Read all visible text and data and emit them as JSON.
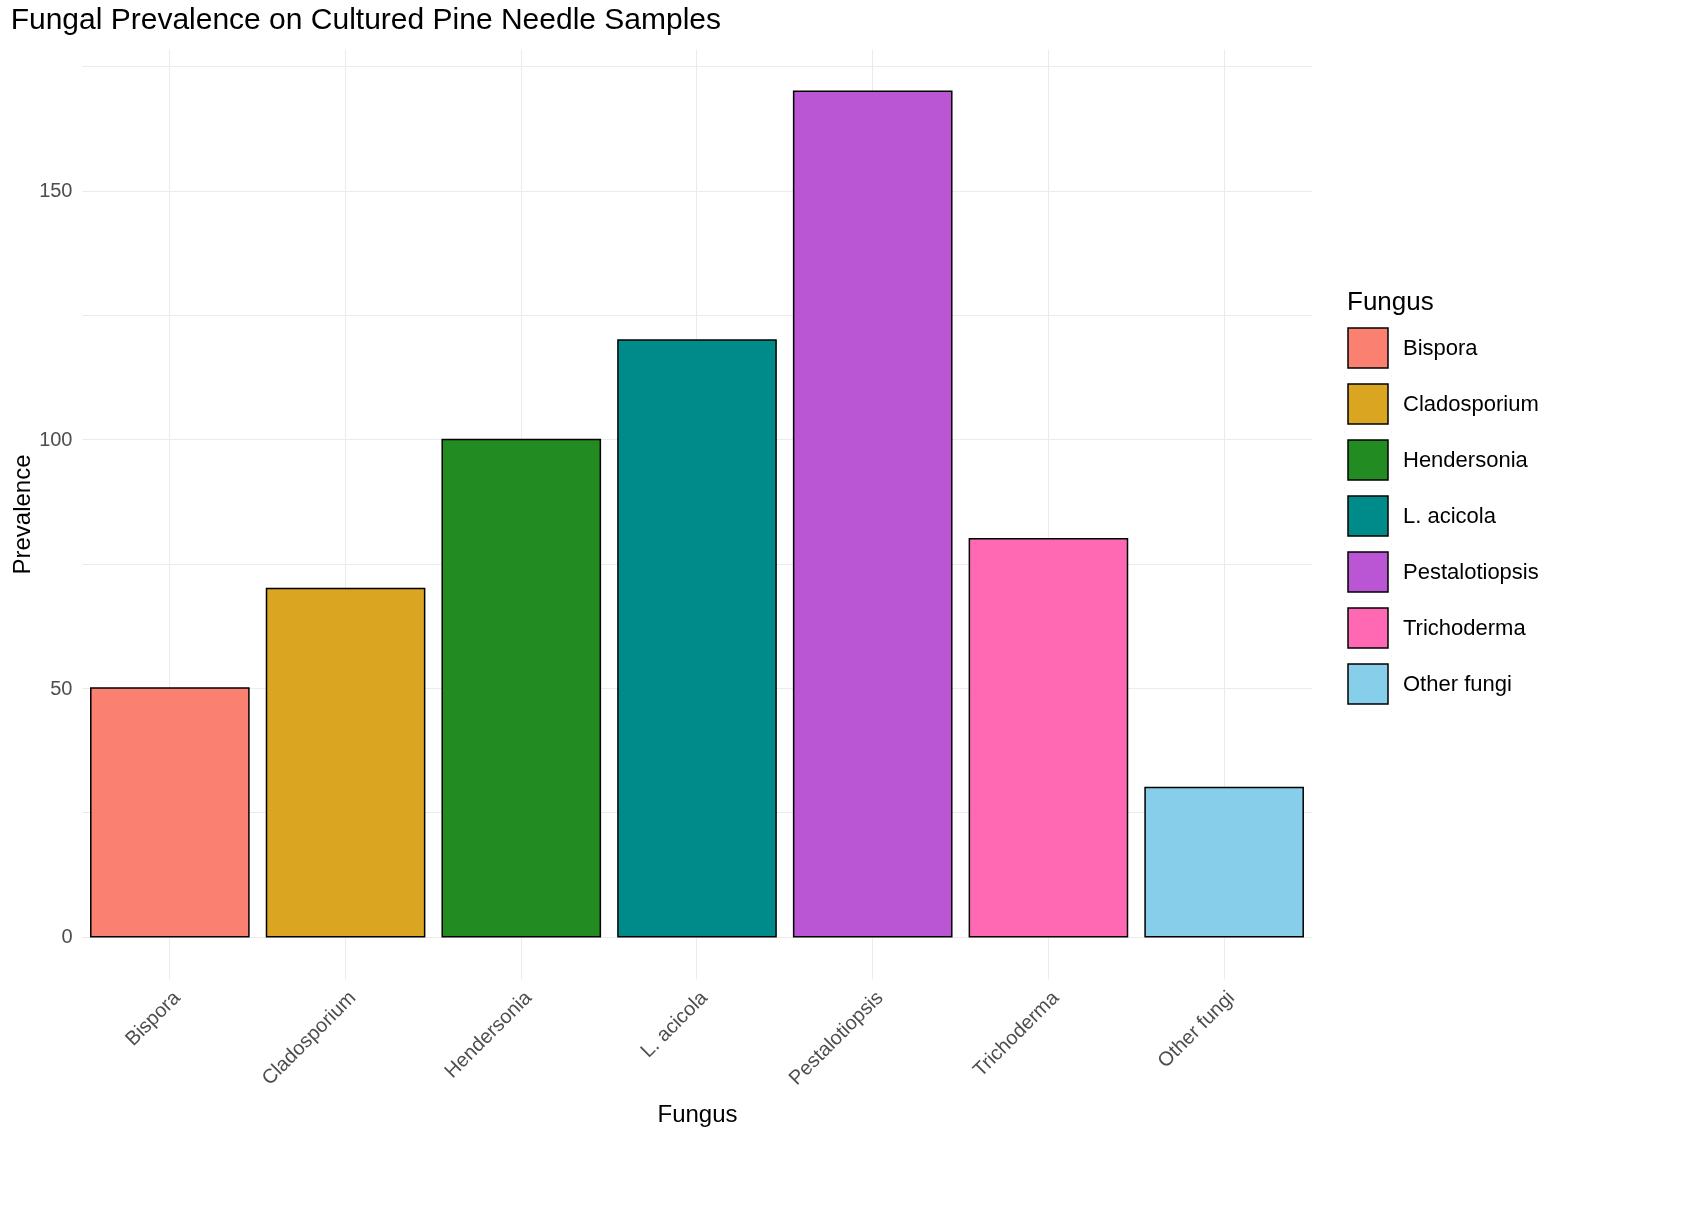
{
  "chart_data": {
    "type": "bar",
    "title": "Fungal Prevalence on Cultured Pine Needle Samples",
    "xlabel": "Fungus",
    "ylabel": "Prevalence",
    "legend_title": "Fungus",
    "categories": [
      "Bispora",
      "Cladosporium",
      "Hendersonia",
      "L. acicola",
      "Pestalotiopsis",
      "Trichoderma",
      "Other fungi"
    ],
    "stacked": true,
    "series": [
      {
        "name": "Bispora",
        "color": "#fa8072",
        "values": [
          50,
          null,
          null,
          null,
          null,
          null,
          null
        ]
      },
      {
        "name": "Cladosporium",
        "color": "#daa520",
        "values": [
          null,
          70,
          null,
          null,
          null,
          null,
          null
        ]
      },
      {
        "name": "Hendersonia",
        "color": "#228b22",
        "values": [
          null,
          null,
          100,
          null,
          null,
          null,
          null
        ]
      },
      {
        "name": "L. acicola",
        "color": "#008b8b",
        "values": [
          null,
          null,
          null,
          120,
          null,
          null,
          null
        ]
      },
      {
        "name": "Pestalotiopsis",
        "color": "#ba55d3",
        "values": [
          null,
          null,
          null,
          null,
          170,
          null,
          null
        ]
      },
      {
        "name": "Trichoderma",
        "color": "#ff69b4",
        "values": [
          null,
          null,
          null,
          null,
          null,
          80,
          null
        ]
      },
      {
        "name": "Other fungi",
        "color": "#87ceeb",
        "values": [
          null,
          null,
          null,
          null,
          null,
          null,
          30
        ]
      }
    ],
    "ylim": [
      -8.5,
      178.5
    ],
    "yticks": [
      0,
      {
        "value": 25,
        "label": null
      },
      50,
      {
        "value": 75,
        "label": null
      },
      100,
      {
        "value": 125,
        "label": null
      },
      150,
      {
        "value": 175,
        "label": null
      }
    ],
    "grid": true,
    "legend": "right"
  }
}
